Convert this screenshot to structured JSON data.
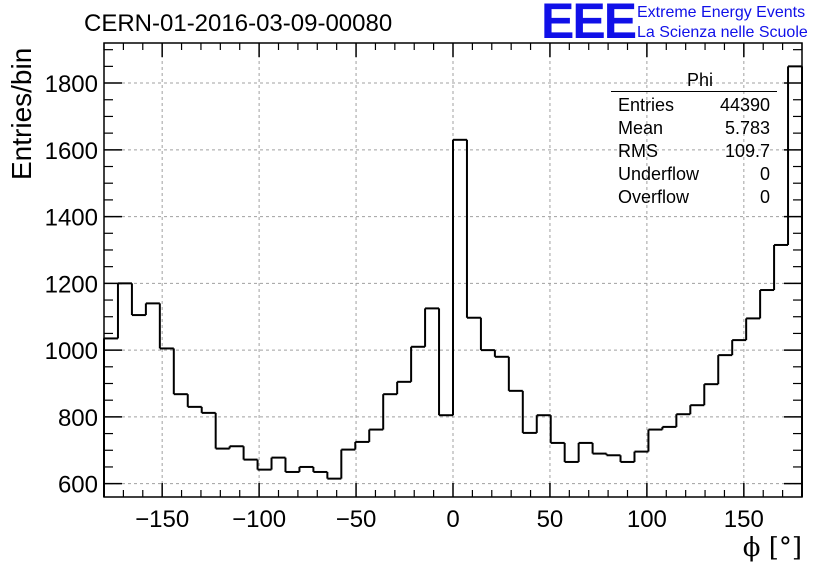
{
  "header": {
    "title": "CERN-01-2016-03-09-00080",
    "logo_mark": "EEE",
    "logo_line1": "Extreme Energy Events",
    "logo_line2": "La Scienza nelle Scuole"
  },
  "stats_box": {
    "title": "Phi",
    "rows": [
      {
        "label": "Entries",
        "value": "44390"
      },
      {
        "label": "Mean",
        "value": "5.783"
      },
      {
        "label": "RMS",
        "value": "109.7"
      },
      {
        "label": "Underflow",
        "value": "0"
      },
      {
        "label": "Overflow",
        "value": "0"
      }
    ]
  },
  "colors": {
    "line": "#000000",
    "grid": "#a0a0a0",
    "logo": "#1010e8"
  },
  "chart_data": {
    "type": "bar",
    "style": "step-histogram",
    "title": "CERN-01-2016-03-09-00080",
    "xlabel": "ϕ [°]",
    "ylabel": "Entries/bin",
    "xlim": [
      -180,
      180
    ],
    "ylim": [
      560,
      1920
    ],
    "bin_width": 7.2,
    "x_ticks": [
      -150,
      -100,
      -50,
      0,
      50,
      100,
      150
    ],
    "y_ticks": [
      600,
      800,
      1000,
      1200,
      1400,
      1600,
      1800
    ],
    "grid": true,
    "legend": "top-right",
    "values": [
      1035,
      1200,
      1105,
      1140,
      1005,
      868,
      830,
      812,
      705,
      712,
      672,
      642,
      678,
      635,
      650,
      635,
      615,
      702,
      725,
      762,
      868,
      905,
      1010,
      1125,
      805,
      1630,
      1097,
      1000,
      980,
      878,
      752,
      805,
      722,
      665,
      722,
      690,
      685,
      665,
      696,
      762,
      770,
      808,
      835,
      898,
      985,
      1030,
      1095,
      1180,
      1315,
      1850
    ]
  }
}
